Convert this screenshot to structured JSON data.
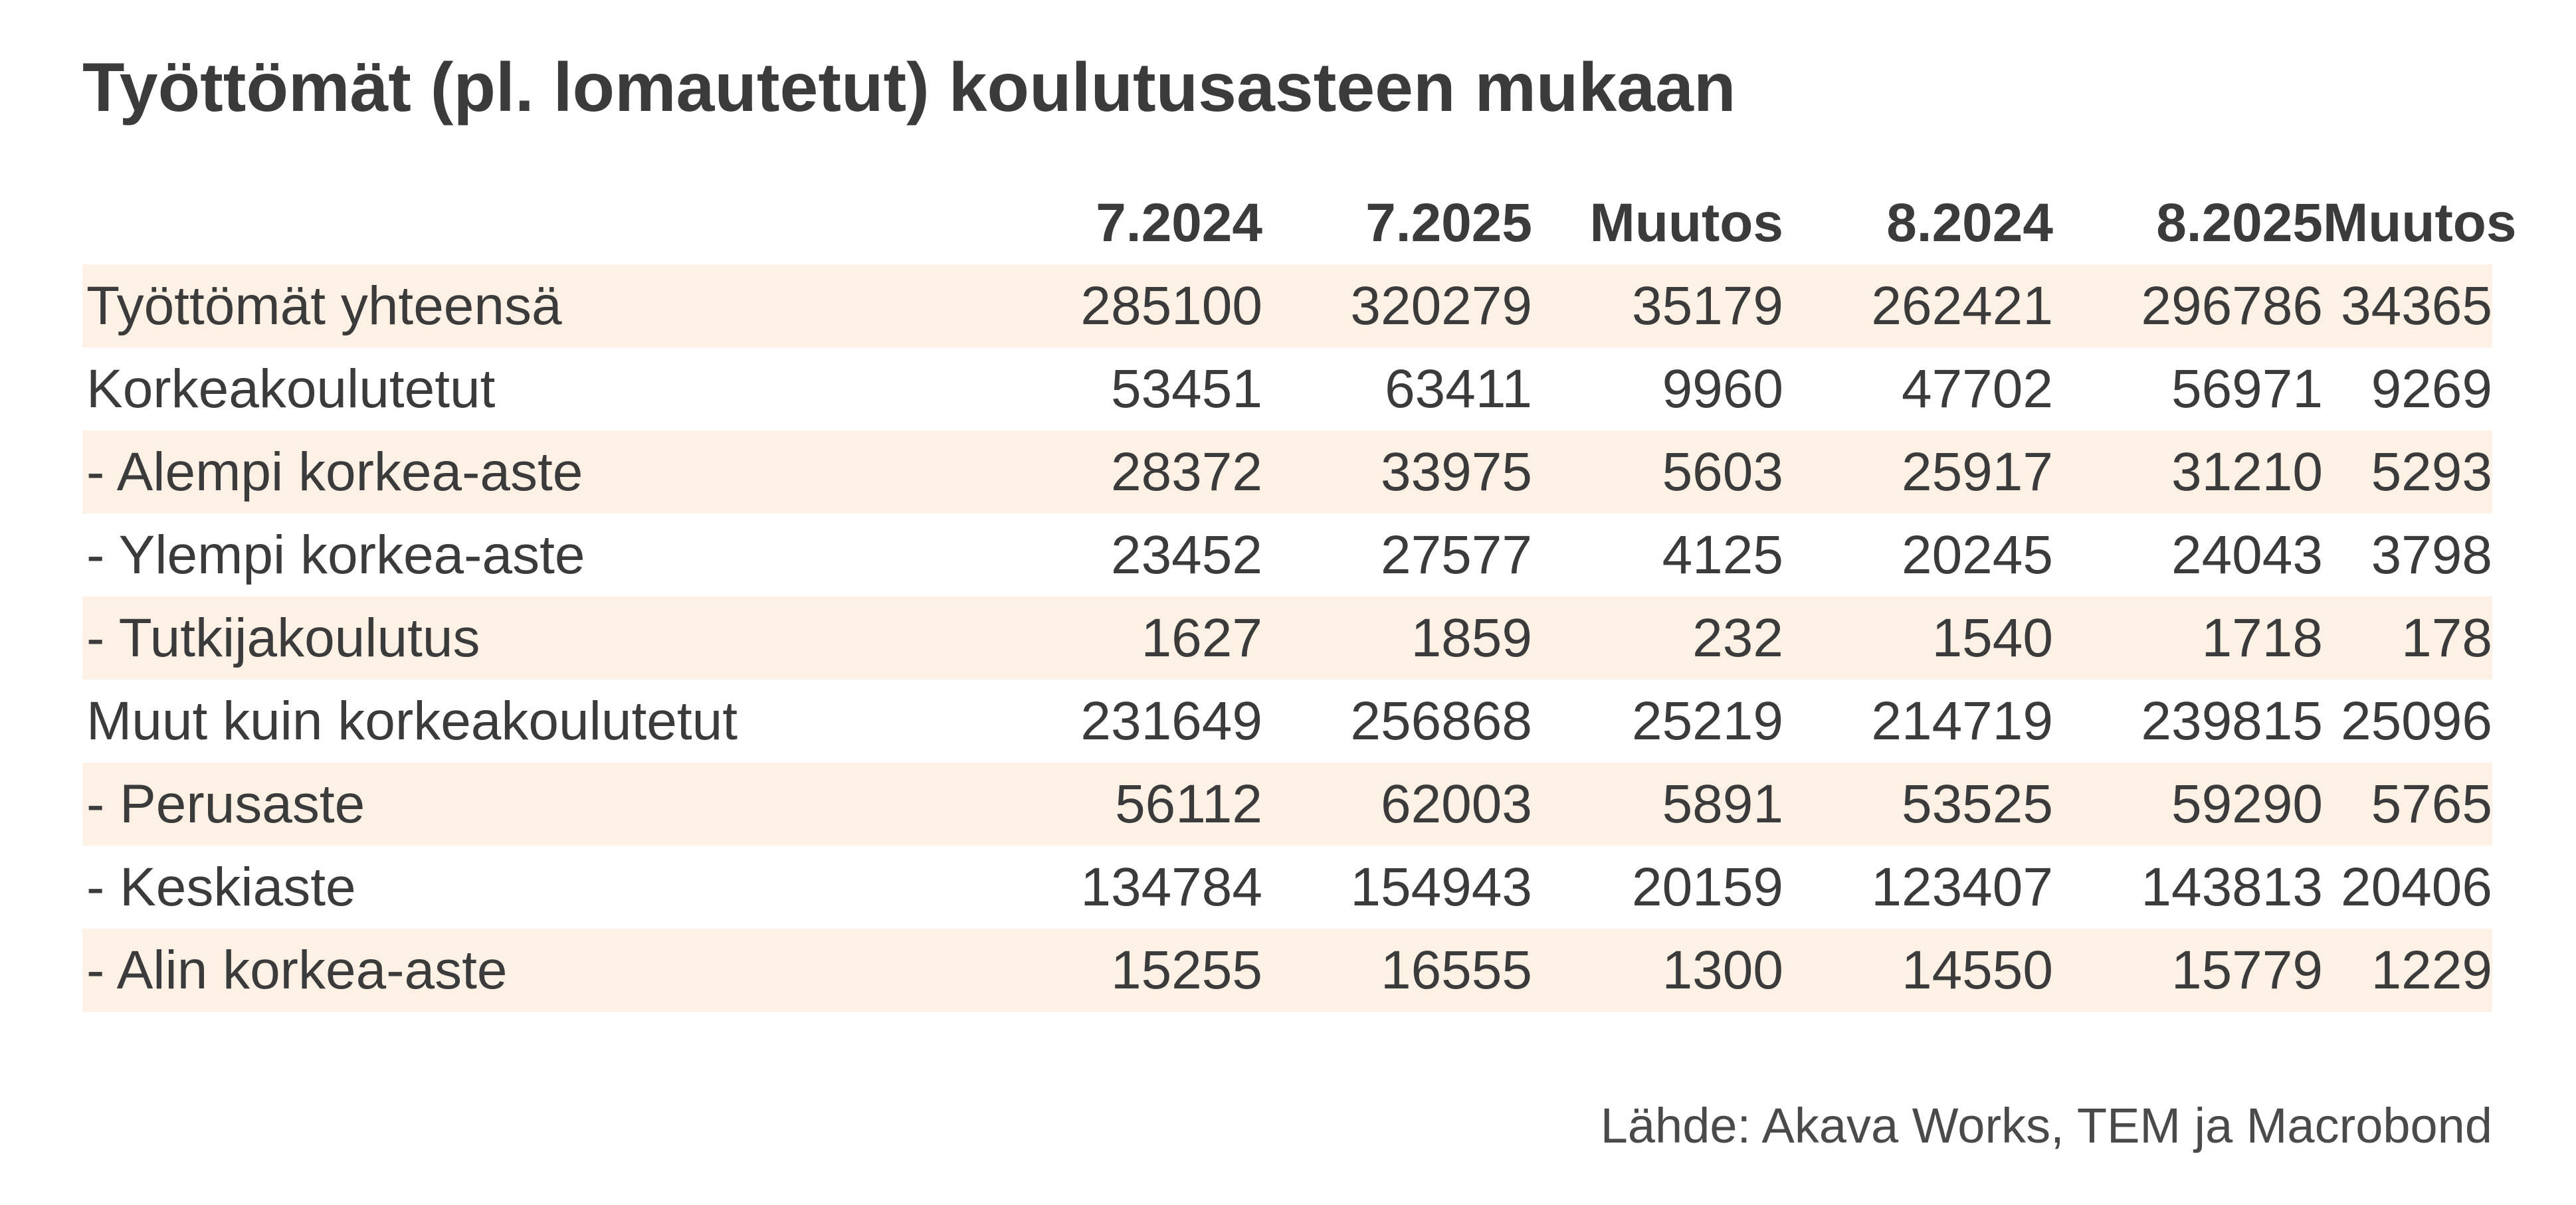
{
  "title": "Työttömät (pl. lomautetut) koulutusasteen mukaan",
  "source": "Lähde: Akava Works, TEM ja Macrobond",
  "colors": {
    "stripe": "#fdf1e6",
    "text": "#3b3b3b"
  },
  "chart_data": {
    "type": "table",
    "title": "Työttömät (pl. lomautetut) koulutusasteen mukaan",
    "columns": [
      "",
      "7.2024",
      "7.2025",
      "Muutos",
      "8.2024",
      "8.2025",
      "Muutos"
    ],
    "rows": [
      {
        "label": "Työttömät yhteensä",
        "values": [
          285100,
          320279,
          35179,
          262421,
          296786,
          34365
        ]
      },
      {
        "label": "Korkeakoulutetut",
        "values": [
          53451,
          63411,
          9960,
          47702,
          56971,
          9269
        ]
      },
      {
        "label": "- Alempi korkea-aste",
        "values": [
          28372,
          33975,
          5603,
          25917,
          31210,
          5293
        ]
      },
      {
        "label": "- Ylempi korkea-aste",
        "values": [
          23452,
          27577,
          4125,
          20245,
          24043,
          3798
        ]
      },
      {
        "label": "- Tutkijakoulutus",
        "values": [
          1627,
          1859,
          232,
          1540,
          1718,
          178
        ]
      },
      {
        "label": "Muut kuin korkeakoulutetut",
        "values": [
          231649,
          256868,
          25219,
          214719,
          239815,
          25096
        ]
      },
      {
        "label": "- Perusaste",
        "values": [
          56112,
          62003,
          5891,
          53525,
          59290,
          5765
        ]
      },
      {
        "label": "- Keskiaste",
        "values": [
          134784,
          154943,
          20159,
          123407,
          143813,
          20406
        ]
      },
      {
        "label": "- Alin korkea-aste",
        "values": [
          15255,
          16555,
          1300,
          14550,
          15779,
          1229
        ]
      }
    ],
    "source": "Lähde: Akava Works, TEM ja Macrobond"
  }
}
